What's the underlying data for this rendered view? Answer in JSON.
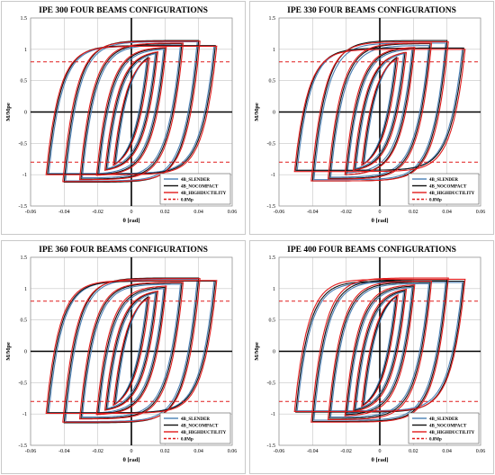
{
  "chart_data": [
    {
      "type": "line",
      "title": "IPE 300 FOUR BEAMS CONFIGURATIONS",
      "xlabel": "θ [rad]",
      "ylabel": "M/Mpe",
      "xlim": [
        -0.06,
        0.06
      ],
      "ylim": [
        -1.5,
        1.5
      ],
      "xticks": [
        "-0.06",
        "-0.04",
        "-0.02",
        "0",
        "0.02",
        "0.04",
        "0.06"
      ],
      "yticks": [
        "1.5",
        "1",
        "0.5",
        "0",
        "-0.5",
        "-1",
        "-1.5"
      ],
      "grid": true,
      "legend_position": "bottom-right",
      "amplitudes": [
        0.01,
        0.015,
        0.02,
        0.03,
        0.04,
        0.05
      ],
      "series": [
        {
          "name": "4B_SLENDER",
          "color": "#4a7fb5",
          "peaks_pos": [
            0.85,
            0.93,
            1.0,
            1.07,
            1.12,
            1.05
          ],
          "peaks_neg": [
            -0.82,
            -0.9,
            -0.98,
            -1.05,
            -1.1,
            -0.98
          ]
        },
        {
          "name": "4B_NOCOMPACT",
          "color": "#111111",
          "peaks_pos": [
            0.87,
            0.95,
            1.02,
            1.09,
            1.14,
            1.06
          ],
          "peaks_neg": [
            -0.84,
            -0.92,
            -1.0,
            -1.07,
            -1.12,
            -0.99
          ]
        },
        {
          "name": "4B_HIGHDUCTILITY",
          "color": "#e01b1b",
          "peaks_pos": [
            0.86,
            0.96,
            1.03,
            1.1,
            1.13,
            1.05
          ],
          "peaks_neg": [
            -0.85,
            -0.93,
            -1.01,
            -1.08,
            -1.11,
            -1.0
          ]
        },
        {
          "name": "0.8Mp",
          "color": "#e01b1b",
          "dashed": true,
          "values": [
            0.8,
            -0.8
          ]
        }
      ]
    },
    {
      "type": "line",
      "title": "IPE 330 FOUR BEAMS CONFIGURATIONS",
      "xlabel": "θ [rad]",
      "ylabel": "M/Mpe",
      "xlim": [
        -0.06,
        0.06
      ],
      "ylim": [
        -1.5,
        1.5
      ],
      "xticks": [
        "-0.06",
        "-0.04",
        "-0.02",
        "0",
        "0.02",
        "0.04",
        "0.06"
      ],
      "yticks": [
        "1.5",
        "1",
        "0.5",
        "0",
        "-0.5",
        "-1",
        "-1.5"
      ],
      "grid": true,
      "legend_position": "bottom-right",
      "amplitudes": [
        0.01,
        0.015,
        0.02,
        0.03,
        0.04,
        0.05
      ],
      "series": [
        {
          "name": "4B_SLENDER",
          "color": "#4a7fb5",
          "peaks_pos": [
            0.85,
            0.93,
            1.0,
            1.06,
            1.1,
            1.02
          ],
          "peaks_neg": [
            -0.82,
            -0.9,
            -0.97,
            -1.04,
            -1.08,
            -0.93
          ]
        },
        {
          "name": "4B_NOCOMPACT",
          "color": "#111111",
          "peaks_pos": [
            0.87,
            0.95,
            1.02,
            1.09,
            1.14,
            1.02
          ],
          "peaks_neg": [
            -0.84,
            -0.92,
            -1.0,
            -1.06,
            -1.1,
            -0.93
          ]
        },
        {
          "name": "4B_HIGHDUCTILITY",
          "color": "#e01b1b",
          "peaks_pos": [
            0.86,
            0.95,
            1.03,
            1.1,
            1.12,
            1.0
          ],
          "peaks_neg": [
            -0.85,
            -0.93,
            -1.0,
            -1.07,
            -1.1,
            -0.95
          ]
        },
        {
          "name": "0.8Mp",
          "color": "#e01b1b",
          "dashed": true,
          "values": [
            0.8,
            -0.8
          ]
        }
      ]
    },
    {
      "type": "line",
      "title": "IPE 360 FOUR BEAMS CONFIGURATIONS",
      "xlabel": "θ [rad]",
      "ylabel": "M/Mpe",
      "xlim": [
        -0.06,
        0.06
      ],
      "ylim": [
        -1.5,
        1.5
      ],
      "xticks": [
        "-0.06",
        "-0.04",
        "-0.02",
        "0",
        "0.02",
        "0.04",
        "0.06"
      ],
      "yticks": [
        "1.5",
        "1",
        "0.5",
        "0",
        "-0.5",
        "-1",
        "-1.5"
      ],
      "grid": true,
      "legend_position": "bottom-right",
      "amplitudes": [
        0.01,
        0.015,
        0.02,
        0.03,
        0.04,
        0.05
      ],
      "series": [
        {
          "name": "4B_SLENDER",
          "color": "#4a7fb5",
          "peaks_pos": [
            0.85,
            0.93,
            1.0,
            1.07,
            1.15,
            1.12
          ],
          "peaks_neg": [
            -0.83,
            -0.91,
            -0.98,
            -1.05,
            -1.12,
            -0.98
          ]
        },
        {
          "name": "4B_NOCOMPACT",
          "color": "#111111",
          "peaks_pos": [
            0.87,
            0.95,
            1.02,
            1.09,
            1.17,
            1.12
          ],
          "peaks_neg": [
            -0.85,
            -0.93,
            -1.0,
            -1.07,
            -1.14,
            -0.98
          ]
        },
        {
          "name": "4B_HIGHDUCTILITY",
          "color": "#e01b1b",
          "peaks_pos": [
            0.86,
            0.96,
            1.04,
            1.1,
            1.16,
            1.13
          ],
          "peaks_neg": [
            -0.86,
            -0.94,
            -1.01,
            -1.08,
            -1.13,
            -0.99
          ]
        },
        {
          "name": "0.8Mp",
          "color": "#e01b1b",
          "dashed": true,
          "values": [
            0.8,
            -0.8
          ]
        }
      ]
    },
    {
      "type": "line",
      "title": "IPE 400 FOUR BEAMS CONFIGURATIONS",
      "xlabel": "θ [rad]",
      "ylabel": "M/Mpe",
      "xlim": [
        -0.06,
        0.06
      ],
      "ylim": [
        -1.5,
        1.5
      ],
      "xticks": [
        "-0.06",
        "-0.04",
        "-0.02",
        "0",
        "0.02",
        "0.04",
        "0.06"
      ],
      "yticks": [
        "1.5",
        "1",
        "0.5",
        "0",
        "-0.5",
        "-1",
        "-1.5"
      ],
      "grid": true,
      "legend_position": "bottom-right",
      "amplitudes": [
        0.01,
        0.015,
        0.02,
        0.03,
        0.04,
        0.05
      ],
      "series": [
        {
          "name": "4B_SLENDER",
          "color": "#4a7fb5",
          "peaks_pos": [
            0.86,
            0.95,
            1.02,
            1.08,
            1.12,
            1.1
          ],
          "peaks_neg": [
            -0.84,
            -0.92,
            -0.99,
            -1.05,
            -1.1,
            -0.95
          ]
        },
        {
          "name": "4B_NOCOMPACT",
          "color": "#111111",
          "peaks_pos": [
            0.88,
            0.97,
            1.04,
            1.1,
            1.14,
            1.12
          ],
          "peaks_neg": [
            -0.86,
            -0.94,
            -1.01,
            -1.07,
            -1.12,
            -0.97
          ]
        },
        {
          "name": "4B_HIGHDUCTILITY",
          "color": "#e01b1b",
          "peaks_pos": [
            0.9,
            0.99,
            1.06,
            1.12,
            1.17,
            1.15
          ],
          "peaks_neg": [
            -0.88,
            -0.96,
            -1.03,
            -1.09,
            -1.13,
            -0.96
          ]
        },
        {
          "name": "0.8Mp",
          "color": "#e01b1b",
          "dashed": true,
          "values": [
            0.8,
            -0.8
          ]
        }
      ]
    }
  ]
}
